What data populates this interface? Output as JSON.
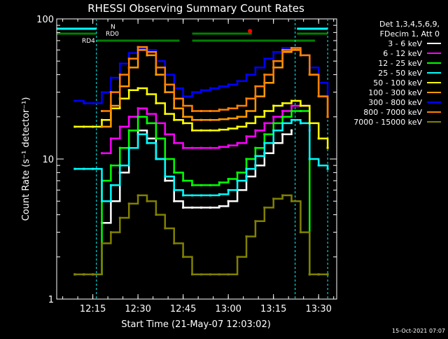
{
  "title": "RHESSI Observing Summary Count Rates",
  "xlabel": "Start Time (21-May-07 12:03:02)",
  "ylabel": "Count Rate (s⁻¹ detector⁻¹)",
  "footer_date": "15-Oct-2021 07:07",
  "detector_info": [
    "Det 1,3,4,5,6,9,",
    "FDecim 1, Att 0"
  ],
  "colors": {
    "background": "#000000",
    "axes": "#ffffff",
    "flag_cyan": "#00ffff",
    "flag_green": "#008000",
    "marker_red": "#ff0000"
  },
  "flags": [
    {
      "label": "N",
      "color": "#00ffff",
      "segments": [
        [
          12.05,
          12.27
        ],
        [
          13.38,
          13.55
        ]
      ]
    },
    {
      "label": "RD0",
      "color": "#008000",
      "segments": [
        [
          12.05,
          12.27
        ],
        [
          12.8,
          13.13
        ],
        [
          13.38,
          13.55
        ]
      ]
    },
    {
      "label": "RD4",
      "color": "#008000",
      "segments": [
        [
          12.27,
          12.73
        ],
        [
          12.8,
          13.48
        ]
      ]
    }
  ],
  "chart_data": {
    "type": "line",
    "title": "RHESSI Observing Summary Count Rates",
    "xlabel": "Start Time (21-May-07 12:03:02)",
    "ylabel": "Count Rate (s⁻¹ detector⁻¹)",
    "x_unit": "UT hours",
    "xlim": [
      12.05,
      13.6
    ],
    "ylim": [
      1,
      100
    ],
    "yscale": "log",
    "grid": false,
    "legend_position": "right",
    "x_ticks": [
      {
        "value": 12.25,
        "label": "12:15"
      },
      {
        "value": 12.5,
        "label": "12:30"
      },
      {
        "value": 12.75,
        "label": "12:45"
      },
      {
        "value": 13.0,
        "label": "13:00"
      },
      {
        "value": 13.25,
        "label": "13:15"
      },
      {
        "value": 13.5,
        "label": "13:30"
      }
    ],
    "y_ticks": [
      {
        "value": 1,
        "label": "1"
      },
      {
        "value": 10,
        "label": "10"
      },
      {
        "value": 100,
        "label": "100"
      }
    ],
    "x": [
      12.15,
      12.2,
      12.25,
      12.3,
      12.35,
      12.4,
      12.45,
      12.5,
      12.55,
      12.6,
      12.65,
      12.7,
      12.75,
      12.8,
      12.85,
      12.9,
      12.95,
      13.0,
      13.05,
      13.1,
      13.15,
      13.2,
      13.25,
      13.3,
      13.35,
      13.4,
      13.45,
      13.5,
      13.55
    ],
    "series": [
      {
        "name": "3 - 6 keV",
        "color": "#ffffff",
        "values": [
          null,
          null,
          null,
          3.5,
          5,
          8,
          12,
          16,
          14,
          10,
          7,
          5,
          4.5,
          4.5,
          4.5,
          4.5,
          4.6,
          5,
          6,
          7.5,
          9,
          11,
          13,
          15,
          16,
          null,
          null,
          null,
          null
        ]
      },
      {
        "name": "6 - 12 keV",
        "color": "#ff00ff",
        "values": [
          null,
          null,
          null,
          11,
          14,
          17,
          20,
          23,
          21,
          18,
          15,
          13,
          12,
          12,
          12,
          12,
          12.2,
          12.5,
          13,
          14.5,
          16,
          18,
          20,
          22,
          24,
          24,
          16,
          null,
          null
        ]
      },
      {
        "name": "12 - 25 keV",
        "color": "#00ff00",
        "values": [
          1.5,
          1.5,
          1.5,
          7,
          9,
          12,
          16,
          20,
          18,
          14,
          10,
          8,
          7,
          6.5,
          6.5,
          6.5,
          6.8,
          7.2,
          8,
          10,
          12,
          15,
          18,
          20,
          22,
          22,
          1.5,
          1.5,
          1.5
        ]
      },
      {
        "name": "25 - 50 keV",
        "color": "#00ffff",
        "values": [
          8.5,
          8.5,
          8.5,
          5,
          6.5,
          9,
          12,
          15,
          13,
          10,
          7.5,
          6,
          5.5,
          5.5,
          5.5,
          5.5,
          5.6,
          6,
          7,
          8.5,
          10.5,
          13,
          16,
          18,
          19,
          18,
          10,
          9,
          8.5
        ]
      },
      {
        "name": "50 - 100 keV",
        "color": "#ffff00",
        "values": [
          17,
          17,
          17,
          19,
          23,
          27,
          31,
          32,
          29,
          25,
          21,
          19,
          18,
          16,
          16,
          16,
          16.2,
          16.5,
          17,
          18,
          20,
          22,
          24,
          25,
          26,
          24,
          18,
          14,
          12
        ]
      },
      {
        "name": "100 - 300 keV",
        "color": "#ff9900",
        "values": [
          null,
          null,
          null,
          17,
          24,
          33,
          45,
          60,
          55,
          40,
          30,
          23,
          20,
          19,
          19,
          19,
          19.2,
          19.5,
          20,
          22,
          28,
          35,
          45,
          58,
          60,
          55,
          40,
          28,
          20
        ]
      },
      {
        "name": "300 - 800 keV",
        "color": "#0000ff",
        "values": [
          26,
          25,
          25,
          30,
          38,
          48,
          57,
          62,
          60,
          50,
          40,
          32,
          28,
          30,
          31,
          32,
          33,
          34,
          36,
          40,
          45,
          52,
          58,
          62,
          62,
          55,
          45,
          35,
          28
        ]
      },
      {
        "name": "800 - 7000 keV",
        "color": "#ff8000",
        "values": [
          null,
          null,
          null,
          22,
          30,
          40,
          52,
          63,
          58,
          45,
          34,
          27,
          24,
          22,
          22,
          22,
          22.5,
          23,
          24,
          27,
          33,
          40,
          50,
          60,
          62,
          55,
          40,
          28,
          20
        ]
      },
      {
        "name": "7000 - 15000 keV",
        "color": "#808000",
        "values": [
          1.5,
          1.5,
          1.5,
          2.5,
          3,
          3.8,
          4.8,
          5.5,
          5,
          4,
          3.2,
          2.5,
          2,
          1.5,
          1.5,
          1.5,
          1.5,
          1.5,
          2,
          2.8,
          3.6,
          4.5,
          5.2,
          5.5,
          5,
          3,
          1.5,
          1.5,
          1.5
        ]
      }
    ]
  },
  "peak_marker": {
    "x": 13.12,
    "y": 82
  }
}
